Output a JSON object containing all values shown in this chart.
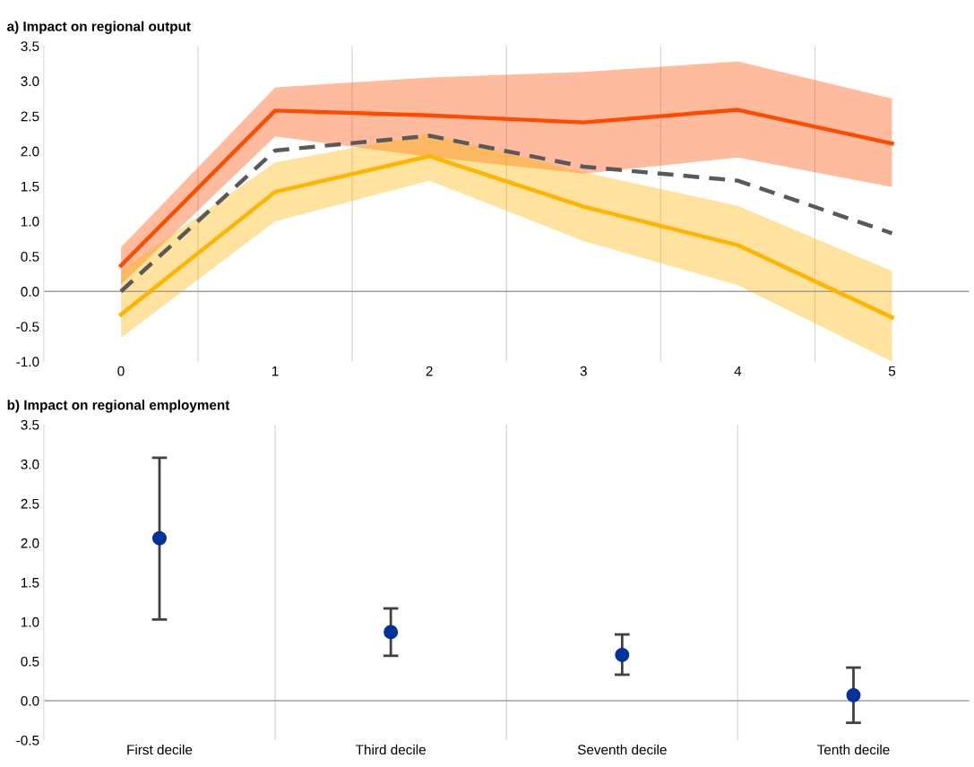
{
  "chart_data": [
    {
      "type": "line",
      "title": "a) Impact on regional output",
      "categories": [
        "0",
        "1",
        "2",
        "3",
        "4",
        "5"
      ],
      "ylim": [
        -1.0,
        3.5
      ],
      "yticks": [
        {
          "value": -1.0,
          "label": "-1.0"
        },
        {
          "value": -0.5,
          "label": "-0.5"
        },
        {
          "value": 0.0,
          "label": "0.0"
        },
        {
          "value": 0.5,
          "label": "0.5"
        },
        {
          "value": 1.0,
          "label": "1.0"
        },
        {
          "value": 1.5,
          "label": "1.5"
        },
        {
          "value": 2.0,
          "label": "2.0"
        },
        {
          "value": 2.5,
          "label": "2.5"
        },
        {
          "value": 3.0,
          "label": "3.0"
        },
        {
          "value": 3.5,
          "label": "3.5"
        }
      ],
      "grid": "x",
      "marker": "none",
      "ref_lines": [
        {
          "axis": "y",
          "value": 0,
          "color": "#a0a0a0"
        }
      ],
      "series": [
        {
          "color": "#ff4b00",
          "values": [
            0.37,
            2.58,
            2.51,
            2.41,
            2.59,
            2.11
          ],
          "lower": [
            0.1,
            2.21,
            1.92,
            1.68,
            1.91,
            1.49
          ],
          "upper": [
            0.63,
            2.91,
            3.05,
            3.13,
            3.28,
            2.75
          ],
          "line_style": "solid"
        },
        {
          "color": "#ffb400",
          "values": [
            -0.33,
            1.42,
            1.93,
            1.21,
            0.66,
            -0.37
          ],
          "lower": [
            -0.66,
            1.0,
            1.58,
            0.72,
            0.09,
            -1.0
          ],
          "upper": [
            0.3,
            1.84,
            2.25,
            1.7,
            1.22,
            0.29
          ],
          "line_style": "solid"
        },
        {
          "color": "#595959",
          "values": [
            0.0,
            2.01,
            2.22,
            1.78,
            1.58,
            0.83
          ],
          "line_style": "dashed"
        }
      ]
    },
    {
      "type": "scatter",
      "title": "b) Impact on regional employment",
      "categories": [
        "First decile",
        "Third decile",
        "Seventh decile",
        "Tenth decile"
      ],
      "ylim": [
        -0.5,
        3.5
      ],
      "yticks": [
        {
          "value": -0.5,
          "label": "-0.5"
        },
        {
          "value": 0.0,
          "label": "0.0"
        },
        {
          "value": 0.5,
          "label": "0.5"
        },
        {
          "value": 1.0,
          "label": "1.0"
        },
        {
          "value": 1.5,
          "label": "1.5"
        },
        {
          "value": 2.0,
          "label": "2.0"
        },
        {
          "value": 2.5,
          "label": "2.5"
        },
        {
          "value": 3.0,
          "label": "3.0"
        },
        {
          "value": 3.5,
          "label": "3.5"
        }
      ],
      "grid": "x",
      "marker": "circle",
      "ref_lines": [
        {
          "axis": "y",
          "value": 0,
          "color": "#a0a0a0"
        }
      ],
      "series": [
        {
          "color": "#003299",
          "values": [
            2.06,
            0.87,
            0.58,
            0.07
          ],
          "errors": [
            [
              1.03,
              3.08
            ],
            [
              0.57,
              1.17
            ],
            [
              0.33,
              0.84
            ],
            [
              -0.28,
              0.42
            ]
          ]
        }
      ]
    }
  ]
}
